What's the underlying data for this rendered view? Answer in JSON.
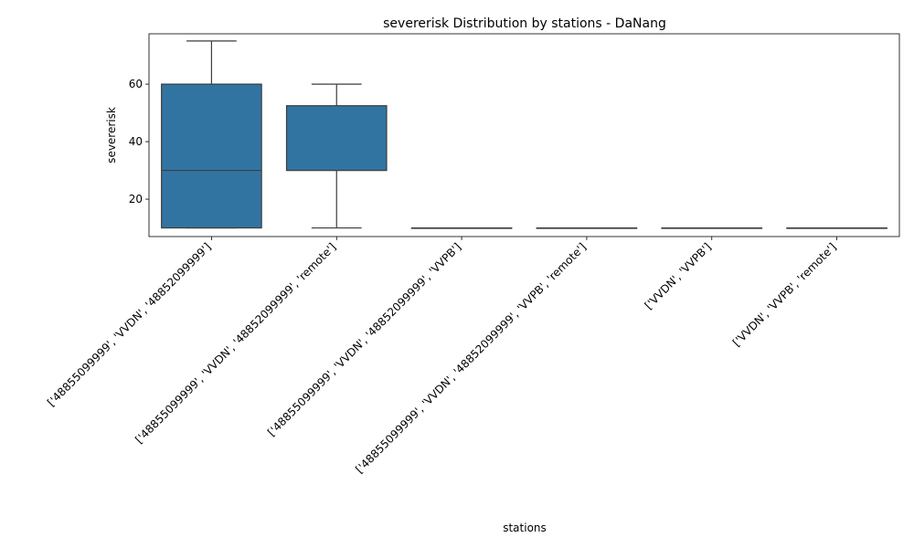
{
  "chart_data": {
    "type": "box",
    "title": "severerisk Distribution by stations - DaNang",
    "xlabel": "stations",
    "ylabel": "severerisk",
    "ylim": [
      7,
      77.5
    ],
    "yticks": [
      20,
      40,
      60
    ],
    "box_color": "#3274a1",
    "line_color": "#3d3d3d",
    "categories": [
      "['48855099999', 'VVDN', '48852099999']",
      "['48855099999', 'VVDN', '48852099999', 'remote']",
      "['48855099999', 'VVDN', '48852099999', 'VVPB']",
      "['48855099999', 'VVDN', '48852099999', 'VVPB', 'remote']",
      "['VVDN', 'VVPB']",
      "['VVDN', 'VVPB', 'remote']"
    ],
    "boxes": [
      {
        "whislo": 10,
        "q1": 10,
        "med": 30,
        "q3": 60,
        "whishi": 75
      },
      {
        "whislo": 10,
        "q1": 30,
        "med": 30,
        "q3": 52.5,
        "whishi": 60
      },
      {
        "whislo": 10,
        "q1": 10,
        "med": 10,
        "q3": 10,
        "whishi": 10
      },
      {
        "whislo": 10,
        "q1": 10,
        "med": 10,
        "q3": 10,
        "whishi": 10
      },
      {
        "whislo": 10,
        "q1": 10,
        "med": 10,
        "q3": 10,
        "whishi": 10
      },
      {
        "whislo": 10,
        "q1": 10,
        "med": 10,
        "q3": 10,
        "whishi": 10
      }
    ]
  }
}
